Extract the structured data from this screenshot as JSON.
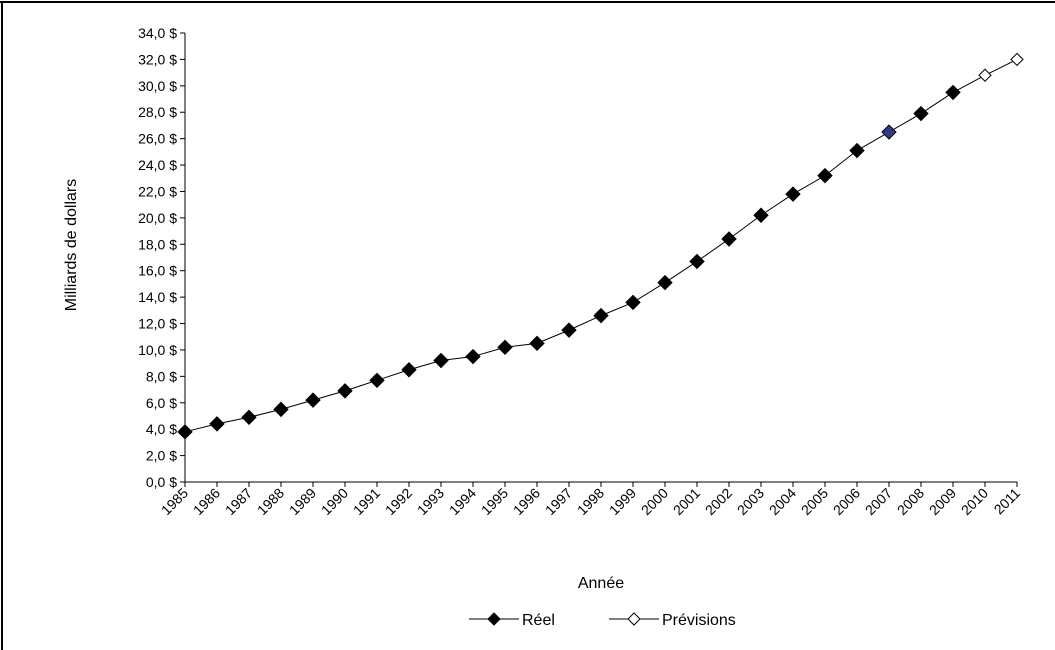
{
  "chart_data": {
    "type": "line",
    "title": "",
    "xlabel": "Année",
    "ylabel": "Milliards de dollars",
    "ylim": [
      0,
      34
    ],
    "ytick_step": 2,
    "ytick_labels": [
      "0,0 $",
      "2,0 $",
      "4,0 $",
      "6,0 $",
      "8,0 $",
      "10,0 $",
      "12,0 $",
      "14,0 $",
      "16,0 $",
      "18,0 $",
      "20,0 $",
      "22,0 $",
      "24,0 $",
      "26,0 $",
      "28,0 $",
      "30,0 $",
      "32,0 $",
      "34,0 $"
    ],
    "categories": [
      "1985",
      "1986",
      "1987",
      "1988",
      "1989",
      "1990",
      "1991",
      "1992",
      "1993",
      "1994",
      "1995",
      "1996",
      "1997",
      "1998",
      "1999",
      "2000",
      "2001",
      "2002",
      "2003",
      "2004",
      "2005",
      "2006",
      "2007",
      "2008",
      "2009",
      "2010",
      "2011"
    ],
    "series": [
      {
        "name": "Réel",
        "marker": "filled-diamond",
        "color": "#000000",
        "highlight": {
          "category": "2007",
          "color": "#2e3a87"
        },
        "x": [
          "1985",
          "1986",
          "1987",
          "1988",
          "1989",
          "1990",
          "1991",
          "1992",
          "1993",
          "1994",
          "1995",
          "1996",
          "1997",
          "1998",
          "1999",
          "2000",
          "2001",
          "2002",
          "2003",
          "2004",
          "2005",
          "2006",
          "2007",
          "2008",
          "2009"
        ],
        "values": [
          3.8,
          4.4,
          4.9,
          5.5,
          6.2,
          6.9,
          7.7,
          8.5,
          9.2,
          9.5,
          10.2,
          10.5,
          11.5,
          12.6,
          13.6,
          15.1,
          16.7,
          18.4,
          20.2,
          21.8,
          23.2,
          25.1,
          26.5,
          27.9,
          29.5
        ]
      },
      {
        "name": "Prévisions",
        "marker": "open-diamond",
        "color": "#000000",
        "x": [
          "2009",
          "2010",
          "2011"
        ],
        "values": [
          29.5,
          30.8,
          32.0
        ]
      }
    ],
    "legend": {
      "position": "bottom-center",
      "entries": [
        "Réel",
        "Prévisions"
      ]
    },
    "grid": false
  }
}
